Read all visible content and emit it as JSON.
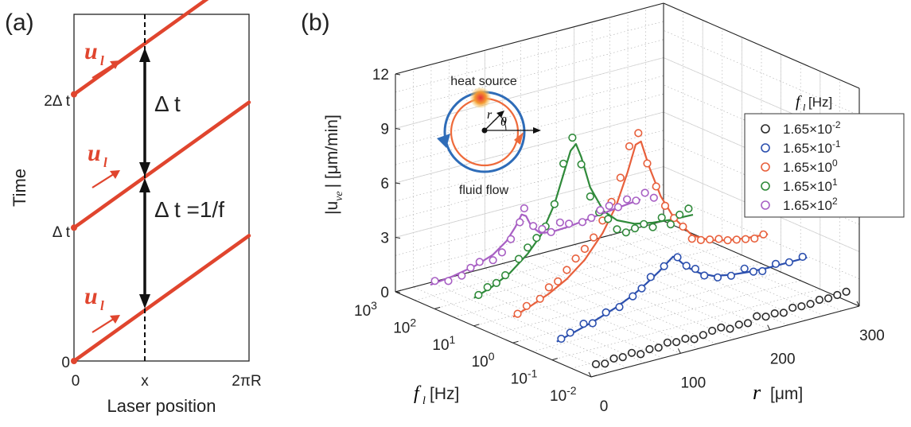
{
  "chart_data": [
    {
      "id": "a",
      "type": "line",
      "panel_label": "(a)",
      "xlabel": "Laser position",
      "ylabel": "Time",
      "x_ticks": [
        "0",
        "x",
        "2πR"
      ],
      "y_ticks": [
        "0",
        "Δ t",
        "2Δ t"
      ],
      "annotations": {
        "interval": "Δ t",
        "interval_formula": "Δ t =1/f",
        "velocity_symbol": "u",
        "velocity_subscript": "l"
      },
      "x_domain": [
        0,
        1
      ],
      "y_domain": [
        0,
        2.6
      ],
      "sawtooth_starts": [
        0,
        1,
        2
      ],
      "marker_x": 0.53
    },
    {
      "id": "b",
      "type": "scatter",
      "panel_label": "(b)",
      "ylabel": "|u",
      "ylabel_subscript": "ve",
      "ylabel_unit": "| [μm/min]",
      "z_ticks": [
        "0",
        "3",
        "6",
        "9",
        "12"
      ],
      "z_range": [
        0,
        12
      ],
      "xlabel": "r",
      "xlabel_unit": "[μm]",
      "r_ticks": [
        "0",
        "100",
        "200",
        "300"
      ],
      "r_range": [
        0,
        300
      ],
      "flabel": "f",
      "flabel_subscript": "l",
      "flabel_unit": "[Hz]",
      "f_tick_base": "10",
      "f_tick_exponents": [
        "-2",
        "-1",
        "0",
        "1",
        "2",
        "3"
      ],
      "legend": {
        "title_symbol": "f",
        "title_subscript": "l",
        "title_unit": "[Hz]",
        "base": "1.65×10",
        "placement": "top-right"
      },
      "inset": {
        "heat_label": "heat source",
        "flow_label": "fluid flow",
        "r_label": "r",
        "theta_label": "θ"
      },
      "series": [
        {
          "name": "1.65×10^-2",
          "exp": "-2",
          "logf": -1.78,
          "color": "#2b2b2b",
          "r": [
            15,
            25,
            35,
            45,
            55,
            65,
            75,
            85,
            95,
            105,
            115,
            125,
            135,
            145,
            155,
            165,
            175,
            185,
            195,
            205,
            215,
            225,
            235,
            245,
            255,
            265,
            275,
            285,
            295
          ],
          "u": [
            0.3,
            0.2,
            0.35,
            0.3,
            0.4,
            0.2,
            0.35,
            0.3,
            0.45,
            0.35,
            0.4,
            0.25,
            0.35,
            0.45,
            0.5,
            0.3,
            0.4,
            0.35,
            0.6,
            0.45,
            0.5,
            0.4,
            0.55,
            0.5,
            0.5,
            0.6,
            0.55,
            0.6,
            0.65
          ]
        },
        {
          "name": "1.65×10^-1",
          "exp": "-1",
          "logf": -0.78,
          "color": "#2b4fae",
          "r": [
            20,
            30,
            45,
            55,
            70,
            85,
            100,
            110,
            120,
            135,
            150,
            160,
            170,
            180,
            195,
            210,
            225,
            235,
            245,
            260,
            275,
            290
          ],
          "u": [
            0.7,
            0.9,
            1.2,
            1.1,
            1.5,
            1.6,
            2.0,
            2.3,
            2.8,
            3.2,
            3.5,
            2.9,
            2.6,
            2.1,
            1.8,
            1.7,
            1.9,
            1.6,
            1.5,
            1.7,
            1.6,
            1.7
          ],
          "fit_r": [
            15,
            40,
            60,
            80,
            100,
            115,
            130,
            140,
            145,
            150,
            160,
            175,
            190,
            210,
            230,
            250,
            270,
            295
          ],
          "fit_u": [
            0.6,
            0.95,
            1.25,
            1.6,
            2.05,
            2.5,
            3.0,
            3.4,
            3.6,
            3.4,
            2.85,
            2.3,
            1.95,
            1.75,
            1.65,
            1.6,
            1.6,
            1.6
          ]
        },
        {
          "name": "1.65×10^0",
          "exp": "0",
          "logf": 0.22,
          "color": "#e8603c",
          "r": [
            15,
            25,
            40,
            50,
            60,
            70,
            80,
            90,
            100,
            110,
            120,
            130,
            140,
            150,
            160,
            170,
            180,
            190,
            200,
            210,
            220,
            230,
            240,
            250,
            260,
            270,
            280,
            290
          ],
          "u": [
            1.2,
            1.5,
            1.7,
            2.2,
            2.4,
            2.9,
            3.4,
            3.8,
            4.3,
            5.1,
            6.0,
            7.2,
            8.8,
            9.4,
            7.6,
            6.2,
            5.0,
            4.2,
            3.6,
            2.8,
            2.6,
            2.5,
            2.4,
            2.2,
            2.1,
            2.0,
            1.9,
            2.0
          ],
          "fit_r": [
            10,
            30,
            50,
            70,
            90,
            110,
            125,
            138,
            147,
            153,
            162,
            175,
            190,
            210,
            230,
            250,
            270,
            295
          ],
          "fit_u": [
            1.1,
            1.45,
            1.85,
            2.4,
            3.2,
            4.4,
            5.7,
            7.4,
            8.8,
            8.9,
            7.4,
            5.6,
            4.2,
            3.0,
            2.45,
            2.2,
            2.05,
            1.95
          ]
        },
        {
          "name": "1.65×10^1",
          "exp": "1",
          "logf": 1.22,
          "color": "#2f8a3a",
          "r": [
            15,
            25,
            35,
            45,
            60,
            70,
            80,
            90,
            100,
            110,
            120,
            130,
            140,
            150,
            160,
            170,
            180,
            190,
            200,
            210,
            220,
            230,
            240,
            250
          ],
          "u": [
            1.3,
            1.6,
            1.7,
            2.0,
            2.7,
            3.2,
            3.6,
            4.1,
            5.2,
            7.3,
            8.6,
            7.0,
            5.1,
            4.1,
            3.6,
            2.9,
            2.6,
            2.7,
            2.8,
            2.5,
            2.9,
            2.4,
            2.8,
            3.0
          ],
          "fit_r": [
            10,
            30,
            50,
            70,
            85,
            100,
            110,
            118,
            124,
            130,
            140,
            155,
            170,
            190,
            210,
            230,
            255
          ],
          "fit_u": [
            1.2,
            1.55,
            2.05,
            2.85,
            3.7,
            5.2,
            6.7,
            7.9,
            8.2,
            7.4,
            5.6,
            4.1,
            3.4,
            2.95,
            2.75,
            2.65,
            2.6
          ]
        },
        {
          "name": "1.65×10^2",
          "exp": "2",
          "logf": 2.22,
          "color": "#a860c4",
          "r": [
            10,
            25,
            40,
            50,
            60,
            75,
            85,
            95,
            105,
            110,
            120,
            130,
            140,
            150,
            160,
            175,
            185,
            195,
            205,
            215,
            225,
            235,
            245,
            255
          ],
          "u": [
            1.2,
            1.0,
            1.1,
            1.4,
            1.6,
            1.5,
            1.8,
            2.4,
            3.2,
            3.9,
            2.8,
            2.5,
            2.2,
            2.6,
            2.4,
            2.3,
            2.4,
            2.7,
            2.8,
            2.6,
            2.9,
            2.7,
            3.0,
            2.6
          ],
          "fit_r": [
            5,
            30,
            55,
            75,
            90,
            100,
            107,
            112,
            118,
            128,
            140,
            160,
            185,
            210,
            240
          ],
          "fit_u": [
            1.05,
            1.2,
            1.45,
            1.8,
            2.35,
            3.0,
            3.6,
            3.45,
            2.8,
            2.3,
            2.2,
            2.25,
            2.4,
            2.55,
            2.7
          ]
        }
      ]
    }
  ]
}
